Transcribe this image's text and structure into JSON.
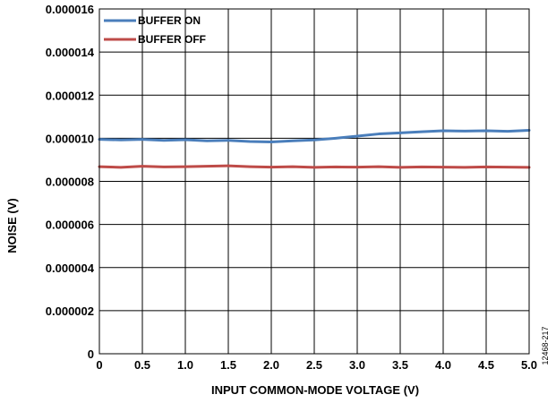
{
  "chart_data": {
    "type": "line",
    "xlabel": "INPUT COMMON-MODE VOLTAGE (V)",
    "ylabel": "NOISE (V)",
    "xlim": [
      0,
      5
    ],
    "ylim": [
      0,
      1.6e-05
    ],
    "x_ticks": [
      "0",
      "0.5",
      "1.0",
      "1.5",
      "2.0",
      "2.5",
      "3.0",
      "3.5",
      "4.0",
      "4.5",
      "5.0"
    ],
    "y_ticks": [
      "0",
      "0.000002",
      "0.000004",
      "0.000006",
      "0.000008",
      "0.000010",
      "0.000012",
      "0.000014",
      "0.000016"
    ],
    "grid": true,
    "legend_position": "top-left",
    "figure_id": "12468-217",
    "series": [
      {
        "name": "BUFFER ON",
        "color": "#4A7EBB",
        "x": [
          0,
          0.25,
          0.5,
          0.75,
          1.0,
          1.25,
          1.5,
          1.75,
          2.0,
          2.25,
          2.5,
          2.75,
          3.0,
          3.25,
          3.5,
          3.75,
          4.0,
          4.25,
          4.5,
          4.75,
          5.0
        ],
        "values": [
          9.95e-06,
          9.92e-06,
          9.95e-06,
          9.9e-06,
          9.93e-06,
          9.88e-06,
          9.9e-06,
          9.85e-06,
          9.83e-06,
          9.88e-06,
          9.92e-06,
          1e-05,
          1.01e-05,
          1.02e-05,
          1.025e-05,
          1.03e-05,
          1.035e-05,
          1.033e-05,
          1.035e-05,
          1.032e-05,
          1.037e-05
        ]
      },
      {
        "name": "BUFFER OFF",
        "color": "#BE4B48",
        "x": [
          0,
          0.25,
          0.5,
          0.75,
          1.0,
          1.25,
          1.5,
          1.75,
          2.0,
          2.25,
          2.5,
          2.75,
          3.0,
          3.25,
          3.5,
          3.75,
          4.0,
          4.25,
          4.5,
          4.75,
          5.0
        ],
        "values": [
          8.68e-06,
          8.65e-06,
          8.7e-06,
          8.67e-06,
          8.68e-06,
          8.7e-06,
          8.72e-06,
          8.68e-06,
          8.66e-06,
          8.68e-06,
          8.65e-06,
          8.67e-06,
          8.66e-06,
          8.68e-06,
          8.65e-06,
          8.67e-06,
          8.66e-06,
          8.65e-06,
          8.67e-06,
          8.66e-06,
          8.65e-06
        ]
      }
    ]
  }
}
